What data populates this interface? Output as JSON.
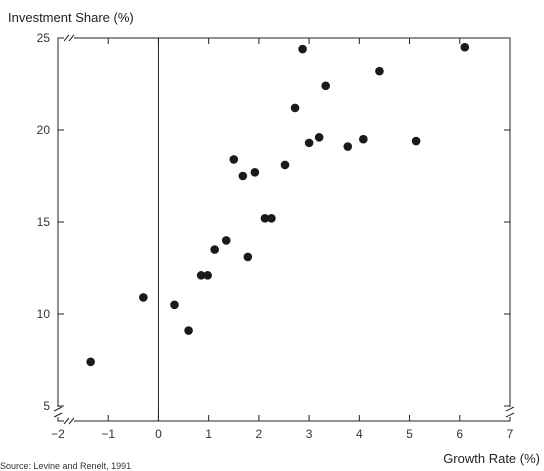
{
  "chart_data": {
    "type": "scatter",
    "xlabel": "Growth Rate (%)",
    "ylabel": "Investment Share (%)",
    "xlim": [
      -2,
      7
    ],
    "ylim": [
      4.5,
      25
    ],
    "xticks": [
      -2,
      -1,
      0,
      1,
      2,
      3,
      4,
      5,
      6,
      7
    ],
    "yticks": [
      5,
      10,
      15,
      20,
      25
    ],
    "grid": false,
    "axis_breaks": [
      "y-bottom",
      "x-left"
    ],
    "reference_line_x": 0,
    "point_color": "#1a1a1a",
    "points": [
      {
        "x": -1.35,
        "y": 7.4
      },
      {
        "x": -0.3,
        "y": 10.9
      },
      {
        "x": 0.32,
        "y": 10.5
      },
      {
        "x": 0.6,
        "y": 9.1
      },
      {
        "x": 0.85,
        "y": 12.1
      },
      {
        "x": 0.98,
        "y": 12.1
      },
      {
        "x": 1.12,
        "y": 13.5
      },
      {
        "x": 1.35,
        "y": 14.0
      },
      {
        "x": 1.5,
        "y": 18.4
      },
      {
        "x": 1.68,
        "y": 17.5
      },
      {
        "x": 1.78,
        "y": 13.1
      },
      {
        "x": 1.92,
        "y": 17.7
      },
      {
        "x": 2.12,
        "y": 15.2
      },
      {
        "x": 2.25,
        "y": 15.2
      },
      {
        "x": 2.52,
        "y": 18.1
      },
      {
        "x": 2.72,
        "y": 21.2
      },
      {
        "x": 2.87,
        "y": 24.4
      },
      {
        "x": 3.0,
        "y": 19.3
      },
      {
        "x": 3.2,
        "y": 19.6
      },
      {
        "x": 3.33,
        "y": 22.4
      },
      {
        "x": 3.77,
        "y": 19.1
      },
      {
        "x": 4.08,
        "y": 19.5
      },
      {
        "x": 4.4,
        "y": 23.2
      },
      {
        "x": 5.13,
        "y": 19.4
      },
      {
        "x": 6.1,
        "y": 24.5
      }
    ]
  },
  "source_note": "Source: Levine and Renelt, 1991"
}
